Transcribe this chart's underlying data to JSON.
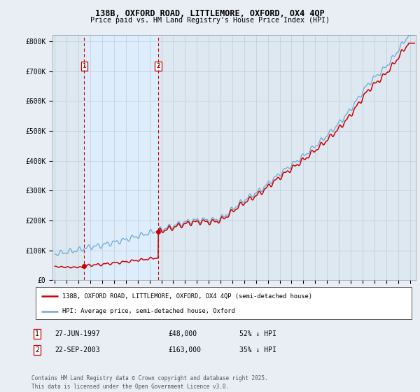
{
  "title1": "138B, OXFORD ROAD, LITTLEMORE, OXFORD, OX4 4QP",
  "title2": "Price paid vs. HM Land Registry's House Price Index (HPI)",
  "ylabel_ticks": [
    "£0",
    "£100K",
    "£200K",
    "£300K",
    "£400K",
    "£500K",
    "£600K",
    "£700K",
    "£800K"
  ],
  "ytick_values": [
    0,
    100000,
    200000,
    300000,
    400000,
    500000,
    600000,
    700000,
    800000
  ],
  "ylim": [
    0,
    820000
  ],
  "xlim_start": 1994.8,
  "xlim_end": 2025.5,
  "xticks": [
    1995,
    1996,
    1997,
    1998,
    1999,
    2000,
    2001,
    2002,
    2003,
    2004,
    2005,
    2006,
    2007,
    2008,
    2009,
    2010,
    2011,
    2012,
    2013,
    2014,
    2015,
    2016,
    2017,
    2018,
    2019,
    2020,
    2021,
    2022,
    2023,
    2024,
    2025
  ],
  "red_line_color": "#cc0000",
  "blue_line_color": "#6fa8d4",
  "vline_color": "#cc0000",
  "fill_color": "#ddeeff",
  "transaction1_x": 1997.49,
  "transaction1_y": 48000,
  "transaction2_x": 2003.73,
  "transaction2_y": 163000,
  "legend_line1": "138B, OXFORD ROAD, LITTLEMORE, OXFORD, OX4 4QP (semi-detached house)",
  "legend_line2": "HPI: Average price, semi-detached house, Oxford",
  "table_row1": [
    "1",
    "27-JUN-1997",
    "£48,000",
    "52% ↓ HPI"
  ],
  "table_row2": [
    "2",
    "22-SEP-2003",
    "£163,000",
    "35% ↓ HPI"
  ],
  "footnote": "Contains HM Land Registry data © Crown copyright and database right 2025.\nThis data is licensed under the Open Government Licence v3.0.",
  "bg_color": "#e8eef4",
  "plot_bg_color": "#dde8f0"
}
